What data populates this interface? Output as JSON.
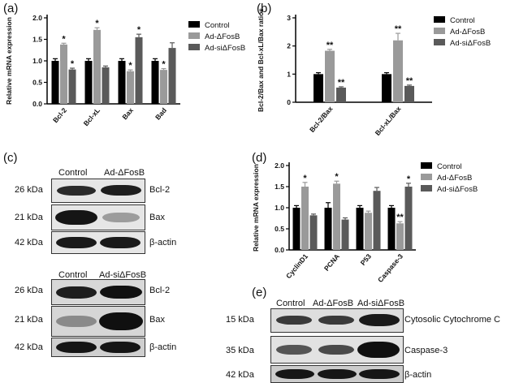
{
  "panels": {
    "a": "(a)",
    "b": "(b)",
    "c": "(c)",
    "d": "(d)",
    "e": "(e)"
  },
  "legend": [
    "Control",
    "Ad-ΔFosB",
    "Ad-siΔFosB"
  ],
  "colors": {
    "control": "#000000",
    "ad": "#9a9a9a",
    "adsi": "#5a5a5a"
  },
  "chart_data": [
    {
      "panel": "(a)",
      "type": "bar",
      "ylabel": "Relative mRNA expression",
      "ylim": [
        0,
        2.0
      ],
      "yticks": [
        "0.0",
        "0.5",
        "1.0",
        "1.5",
        "2.0"
      ],
      "categories": [
        "Bcl-2",
        "Bcl-xL",
        "Bax",
        "Bad"
      ],
      "series": [
        {
          "name": "Control",
          "values": [
            1.0,
            1.0,
            1.0,
            1.0
          ],
          "errors": [
            0.05,
            0.05,
            0.05,
            0.05
          ]
        },
        {
          "name": "Ad-ΔFosB",
          "values": [
            1.38,
            1.72,
            0.76,
            0.79
          ],
          "errors": [
            0.03,
            0.05,
            0.03,
            0.03
          ]
        },
        {
          "name": "Ad-siΔFosB",
          "values": [
            0.8,
            0.85,
            1.55,
            1.3
          ],
          "errors": [
            0.03,
            0.03,
            0.07,
            0.12
          ]
        }
      ],
      "annotations": [
        {
          "cat": 0,
          "series": 1,
          "text": "*"
        },
        {
          "cat": 0,
          "series": 2,
          "text": "*"
        },
        {
          "cat": 1,
          "series": 1,
          "text": "*"
        },
        {
          "cat": 2,
          "series": 1,
          "text": "*"
        },
        {
          "cat": 2,
          "series": 2,
          "text": "*"
        },
        {
          "cat": 3,
          "series": 1,
          "text": "*"
        }
      ],
      "grid": false,
      "legend_position": "right"
    },
    {
      "panel": "(b)",
      "type": "bar",
      "ylabel": "Bcl-2/Bax and Bcl-xL/Bax ratios",
      "ylim": [
        0,
        3
      ],
      "yticks": [
        "0",
        "1",
        "2",
        "3"
      ],
      "categories": [
        "Bcl-2/Bax",
        "Bcl-xL/Bax"
      ],
      "series": [
        {
          "name": "Control",
          "values": [
            1.0,
            1.0
          ],
          "errors": [
            0.05,
            0.05
          ]
        },
        {
          "name": "Ad-ΔFosB",
          "values": [
            1.83,
            2.2
          ],
          "errors": [
            0.05,
            0.25
          ]
        },
        {
          "name": "Ad-siΔFosB",
          "values": [
            0.52,
            0.58
          ],
          "errors": [
            0.03,
            0.03
          ]
        }
      ],
      "annotations": [
        {
          "cat": 0,
          "series": 1,
          "text": "**"
        },
        {
          "cat": 0,
          "series": 2,
          "text": "**"
        },
        {
          "cat": 1,
          "series": 1,
          "text": "**"
        },
        {
          "cat": 1,
          "series": 2,
          "text": "**"
        }
      ],
      "grid": false,
      "legend_position": "right"
    },
    {
      "panel": "(d)",
      "type": "bar",
      "ylabel": "Relative mRNA expression",
      "ylim": [
        0,
        2.0
      ],
      "yticks": [
        "0.0",
        "0.5",
        "1.0",
        "1.5",
        "2.0"
      ],
      "categories": [
        "CyclinD1",
        "PCNA",
        "P53",
        "Caspase-3"
      ],
      "series": [
        {
          "name": "Control",
          "values": [
            1.0,
            1.0,
            1.0,
            1.0
          ],
          "errors": [
            0.05,
            0.12,
            0.05,
            0.05
          ]
        },
        {
          "name": "Ad-ΔFosB",
          "values": [
            1.5,
            1.57,
            0.88,
            0.63
          ],
          "errors": [
            0.1,
            0.06,
            0.04,
            0.04
          ]
        },
        {
          "name": "Ad-siΔFosB",
          "values": [
            0.82,
            0.72,
            1.4,
            1.5
          ],
          "errors": [
            0.03,
            0.04,
            0.08,
            0.08
          ]
        }
      ],
      "annotations": [
        {
          "cat": 0,
          "series": 1,
          "text": "*"
        },
        {
          "cat": 1,
          "series": 1,
          "text": "*"
        },
        {
          "cat": 3,
          "series": 1,
          "text": "**"
        },
        {
          "cat": 3,
          "series": 2,
          "text": "*"
        }
      ],
      "grid": false,
      "legend_position": "right"
    }
  ],
  "blots": {
    "c1": {
      "headers": [
        "Control",
        "Ad-ΔFosB"
      ],
      "rows": [
        {
          "kda": "26 kDa",
          "protein": "Bcl-2"
        },
        {
          "kda": "21 kDa",
          "protein": "Bax"
        },
        {
          "kda": "42 kDa",
          "protein": "β-actin"
        }
      ]
    },
    "c2": {
      "headers": [
        "Control",
        "Ad-siΔFosB"
      ],
      "rows": [
        {
          "kda": "26 kDa",
          "protein": "Bcl-2"
        },
        {
          "kda": "21 kDa",
          "protein": "Bax"
        },
        {
          "kda": "42 kDa",
          "protein": "β-actin"
        }
      ]
    },
    "e": {
      "headers": [
        "Control",
        "Ad-ΔFosB",
        "Ad-siΔFosB"
      ],
      "rows": [
        {
          "kda": "15 kDa",
          "protein": "Cytosolic Cytochrome C"
        },
        {
          "kda": "35 kDa",
          "protein": "Caspase-3"
        },
        {
          "kda": "42 kDa",
          "protein": "β-actin"
        }
      ]
    }
  }
}
